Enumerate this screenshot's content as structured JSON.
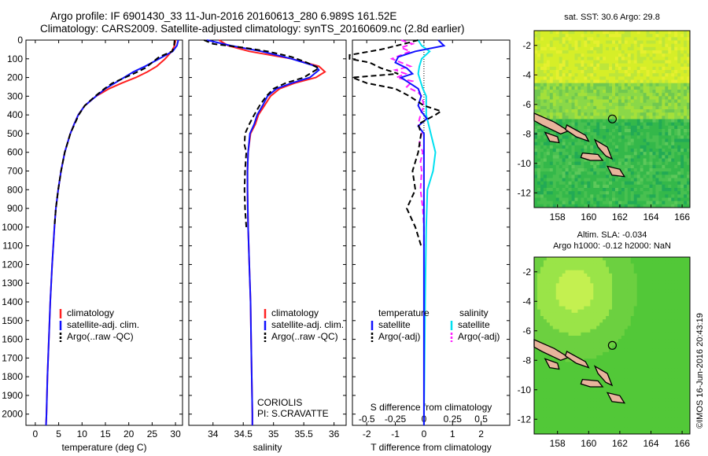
{
  "header": {
    "title_line1": "Argo profile: IF 6901430_33 11-Jun-2016 20160613_280 6.989S 161.52E",
    "title_line2": "Climatology: CARS2009. Satellite-adjusted climatology: synTS_20160609.nc (2.8d earlier)"
  },
  "colors": {
    "climatology": "#ff2020",
    "satellite": "#1010ff",
    "argo": "#000000",
    "salinity_satellite": "#00e0f0",
    "salinity_argo": "#ff20ff",
    "land": "#e8b49c"
  },
  "chart_data": [
    {
      "type": "line",
      "xlabel": "temperature (deg C)",
      "ylabel": "",
      "xlim": [
        -2,
        31.5
      ],
      "ylim": [
        2060,
        0
      ],
      "xticks": [
        0,
        5,
        10,
        15,
        20,
        25,
        30
      ],
      "yticks": [
        0,
        100,
        200,
        300,
        400,
        500,
        600,
        700,
        800,
        900,
        1000,
        1100,
        1200,
        1300,
        1400,
        1500,
        1600,
        1700,
        1800,
        1900,
        2000
      ],
      "legend": [
        "climatology",
        "satellite-adj. clim.",
        "Argo(..raw -QC)"
      ],
      "series": [
        {
          "name": "climatology",
          "depth": [
            0,
            30,
            60,
            100,
            140,
            170,
            200,
            230,
            260,
            300,
            350,
            400,
            450,
            500,
            600,
            700,
            800,
            900,
            1000,
            1200,
            1400,
            1600,
            1800,
            2000,
            2060
          ],
          "values": [
            30,
            29.8,
            29.2,
            27.8,
            26,
            24,
            21.5,
            18.5,
            15.8,
            13,
            10.6,
            9.2,
            8.3,
            7.5,
            6.3,
            5.5,
            4.9,
            4.4,
            4.1,
            3.6,
            3.2,
            2.9,
            2.6,
            2.4,
            2.3
          ]
        },
        {
          "name": "satellite-adj. clim.",
          "depth": [
            0,
            30,
            60,
            100,
            140,
            170,
            200,
            230,
            260,
            300,
            350,
            400,
            450,
            500,
            600,
            700,
            800,
            900,
            1000,
            1200,
            1400,
            1600,
            1800,
            2000,
            2060
          ],
          "values": [
            30.6,
            30.3,
            29.4,
            26.5,
            23.5,
            21,
            19,
            17,
            15,
            13,
            10.6,
            9.2,
            8.3,
            7.5,
            6.3,
            5.5,
            4.9,
            4.4,
            4.1,
            3.6,
            3.2,
            2.9,
            2.6,
            2.4,
            2.3
          ]
        },
        {
          "name": "Argo(..raw -QC)",
          "depth": [
            0,
            30,
            60,
            90,
            120,
            150,
            180,
            200,
            230,
            260,
            300,
            350,
            400,
            450,
            500,
            600,
            700,
            800,
            900,
            1000
          ],
          "values": [
            29.8,
            29.7,
            29.3,
            26.5,
            25,
            23.5,
            21,
            19.2,
            16.5,
            14.8,
            12.8,
            10.6,
            9.3,
            8.4,
            7.5,
            6.3,
            5.5,
            4.9,
            4.4,
            4.1
          ]
        }
      ]
    },
    {
      "type": "line",
      "xlabel": "salinity",
      "ylabel": "",
      "xlim": [
        33.6,
        36.2
      ],
      "ylim": [
        2060,
        0
      ],
      "xticks": [
        34,
        34.5,
        35,
        35.5,
        36
      ],
      "xticklabels": [
        "34",
        "34.5",
        "35",
        "35.5",
        "36"
      ],
      "legend": [
        "climatology",
        "satellite-adj. clim.",
        "Argo(..raw -QC)"
      ],
      "annotation": [
        "CORIOLIS",
        "PI: S.CRAVATTE"
      ],
      "series": [
        {
          "name": "climatology",
          "depth": [
            0,
            30,
            60,
            100,
            140,
            170,
            200,
            230,
            260,
            300,
            350,
            400,
            450,
            500,
            600,
            700,
            800,
            1000,
            1200,
            1400,
            1600,
            1800,
            2000,
            2060
          ],
          "values": [
            34.1,
            34.25,
            34.6,
            35.3,
            35.75,
            35.85,
            35.7,
            35.35,
            35.1,
            34.95,
            34.85,
            34.75,
            34.7,
            34.62,
            34.58,
            34.57,
            34.57,
            34.58,
            34.6,
            34.62,
            34.63,
            34.64,
            34.65,
            34.65
          ]
        },
        {
          "name": "satellite-adj. clim.",
          "depth": [
            0,
            30,
            60,
            100,
            140,
            160,
            200,
            230,
            260,
            300,
            350,
            400,
            450,
            500,
            600,
            700,
            800,
            1000,
            1200,
            1400,
            1600,
            1800,
            2000,
            2060
          ],
          "values": [
            33.9,
            34.3,
            34.8,
            35.3,
            35.7,
            35.75,
            35.6,
            35.3,
            35.05,
            34.9,
            34.82,
            34.73,
            34.68,
            34.61,
            34.58,
            34.57,
            34.57,
            34.58,
            34.6,
            34.62,
            34.63,
            34.64,
            34.65,
            34.65
          ]
        },
        {
          "name": "Argo(..raw -QC)",
          "depth": [
            0,
            20,
            40,
            60,
            90,
            120,
            150,
            170,
            200,
            230,
            260,
            300,
            350,
            400,
            450,
            500,
            560,
            600,
            700,
            800,
            900,
            1000
          ],
          "values": [
            33.85,
            34.0,
            34.5,
            34.9,
            35.3,
            35.55,
            35.75,
            35.65,
            35.5,
            35.2,
            35.0,
            34.88,
            34.77,
            34.68,
            34.6,
            34.53,
            34.52,
            34.55,
            34.53,
            34.52,
            34.53,
            34.55
          ]
        }
      ]
    },
    {
      "type": "line",
      "xlabel": "T difference from climatology",
      "x2label": "S difference from climatology",
      "ylabel": "",
      "xlim": [
        -2.5,
        3
      ],
      "ylim": [
        2060,
        0
      ],
      "xticks": [
        -2,
        -1,
        0,
        1,
        2
      ],
      "x2ticks": [
        -0.5,
        -0.25,
        0,
        0.25,
        0.5
      ],
      "legend": [
        {
          "group": "temperature",
          "items": [
            "satellite",
            "Argo(-adj)"
          ]
        },
        {
          "group": "salinity",
          "items": [
            "satellite",
            "Argo(-adj)"
          ]
        }
      ],
      "series": [
        {
          "name": "temperature satellite",
          "depth": [
            0,
            30,
            60,
            90,
            120,
            150,
            180,
            200,
            230,
            260,
            300,
            350,
            380,
            420,
            460,
            500,
            600,
            800,
            1000,
            1400,
            2060
          ],
          "values": [
            0.5,
            0.7,
            -0.3,
            -0.9,
            -1.0,
            -0.6,
            -0.4,
            -0.8,
            -0.5,
            -0.2,
            -0.1,
            -0.2,
            -0.1,
            0.1,
            -0.2,
            0,
            0,
            0,
            0,
            0,
            0
          ]
        },
        {
          "name": "temperature Argo(-adj)",
          "depth": [
            0,
            20,
            50,
            80,
            100,
            120,
            150,
            180,
            200,
            230,
            260,
            300,
            350,
            380,
            400,
            450,
            500,
            600,
            700,
            800,
            900,
            1000,
            1100
          ],
          "values": [
            -0.2,
            -0.7,
            -1.5,
            -2.6,
            -2.6,
            -1.9,
            -1.5,
            -0.9,
            -2.5,
            -2.0,
            -1.0,
            -0.5,
            0,
            0.6,
            0.4,
            -0.2,
            -0.1,
            -0.2,
            -0.4,
            -0.3,
            -0.6,
            -0.3,
            -0.1
          ]
        },
        {
          "name": "salinity satellite",
          "depth": [
            0,
            30,
            60,
            100,
            140,
            180,
            220,
            260,
            300,
            400,
            500,
            600,
            700,
            800,
            1000,
            1400,
            2060
          ],
          "values": [
            -0.05,
            -0.02,
            0.05,
            -0.02,
            -0.04,
            -0.05,
            -0.03,
            -0.01,
            0.02,
            0.02,
            0.06,
            0.1,
            0.08,
            0.03,
            0.02,
            0.01,
            0
          ]
        },
        {
          "name": "salinity Argo(-adj)",
          "depth": [
            0,
            20,
            40,
            60,
            80,
            100,
            120,
            140,
            160,
            180,
            200,
            220,
            250,
            280,
            300,
            350,
            400,
            450,
            500,
            550,
            600,
            650,
            700,
            800,
            900,
            1000,
            1100
          ],
          "values": [
            -0.2,
            -0.1,
            -0.2,
            -0.12,
            -0.2,
            -0.28,
            -0.2,
            -0.12,
            -0.25,
            -0.16,
            -0.24,
            -0.1,
            -0.15,
            -0.05,
            -0.02,
            0.0,
            -0.03,
            -0.05,
            -0.02,
            -0.04,
            -0.01,
            -0.03,
            -0.02,
            -0.03,
            -0.01,
            0,
            0
          ]
        }
      ]
    },
    {
      "type": "heatmap",
      "title": "sat. SST: 30.6 Argo: 29.8",
      "xticks": [
        158,
        160,
        162,
        164,
        166
      ],
      "yticks": [
        -2,
        -4,
        -6,
        -8,
        -10,
        -12
      ],
      "xlim": [
        156.5,
        166.5
      ],
      "ylim": [
        -13,
        -1
      ],
      "argo_position": {
        "lon": 161.52,
        "lat": -6.989
      }
    },
    {
      "type": "heatmap",
      "title": "Altim. SLA: -0.034",
      "subtitle": "Argo h1000: -0.12 h2000: NaN",
      "xticks": [
        158,
        160,
        162,
        164,
        166
      ],
      "yticks": [
        -2,
        -4,
        -6,
        -8,
        -10,
        -12
      ],
      "xlim": [
        156.5,
        166.5
      ],
      "ylim": [
        -13,
        -1
      ],
      "argo_position": {
        "lon": 161.52,
        "lat": -6.989
      }
    }
  ],
  "footer": {
    "credit": "©IMOS 16-Jun-2016 20:43:19"
  }
}
